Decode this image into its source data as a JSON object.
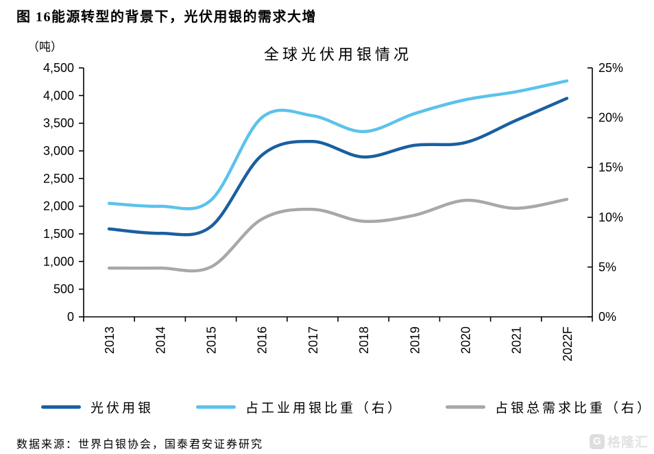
{
  "figure": {
    "caption": "图 16能源转型的背景下，光伏用银的需求大增",
    "source": "数据来源：世界白银协会，国泰君安证券研究"
  },
  "watermark": {
    "logo_letter": "G",
    "text": "格隆汇"
  },
  "chart_data": {
    "type": "line",
    "title": "全球光伏用银情况",
    "unit_label": "（吨）",
    "grid": false,
    "legend_position": "bottom",
    "categories": [
      "2013",
      "2014",
      "2015",
      "2016",
      "2017",
      "2018",
      "2019",
      "2020",
      "2021",
      "2022F"
    ],
    "series": [
      {
        "name": "光伏用银",
        "axis": "left",
        "color": "#1a5fa0",
        "values": [
          1590,
          1510,
          1630,
          2920,
          3170,
          2890,
          3100,
          3150,
          3550,
          3950
        ]
      },
      {
        "name": "占工业用银比重（右）",
        "axis": "right",
        "color": "#5bc2ec",
        "values": [
          11.4,
          11.1,
          11.7,
          20.0,
          20.2,
          18.6,
          20.4,
          21.8,
          22.6,
          23.7
        ]
      },
      {
        "name": "占银总需求比重（右）",
        "axis": "right",
        "color": "#a8a8a8",
        "values": [
          4.9,
          4.9,
          5.0,
          9.8,
          10.8,
          9.6,
          10.2,
          11.7,
          10.9,
          11.8
        ]
      }
    ],
    "left_axis": {
      "min": 0,
      "max": 4500,
      "step": 500,
      "tick_labels": [
        "0",
        "500",
        "1,000",
        "1,500",
        "2,000",
        "2,500",
        "3,000",
        "3,500",
        "4,000",
        "4,500"
      ]
    },
    "right_axis": {
      "min": 0,
      "max": 25,
      "step": 5,
      "tick_labels": [
        "0%",
        "5%",
        "10%",
        "15%",
        "20%",
        "25%"
      ]
    },
    "axis_color": "#000000"
  }
}
